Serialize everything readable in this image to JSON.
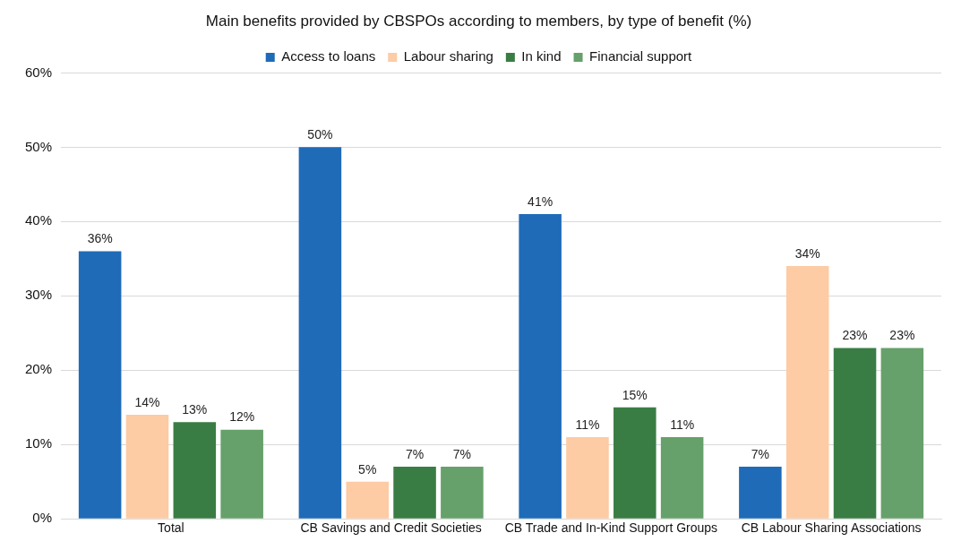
{
  "chart_data": {
    "type": "bar",
    "title": "Main benefits provided by CBSPOs according to members, by type of benefit (%)",
    "categories": [
      "Total",
      "CB Savings and Credit Societies",
      "CB Trade and In-Kind Support Groups",
      "CB Labour Sharing Associations"
    ],
    "series": [
      {
        "name": "Access to loans",
        "color": "#1f6bb8",
        "values": [
          36,
          50,
          41,
          7
        ],
        "value_labels": [
          "36%",
          "50%",
          "41%",
          "7%"
        ]
      },
      {
        "name": "Labour sharing",
        "color": "#fdcba4",
        "values": [
          14,
          5,
          11,
          34
        ],
        "value_labels": [
          "14%",
          "5%",
          "11%",
          "34%"
        ]
      },
      {
        "name": "In kind",
        "color": "#3a7d44",
        "values": [
          13,
          7,
          15,
          23
        ],
        "value_labels": [
          "13%",
          "7%",
          "15%",
          "23%"
        ]
      },
      {
        "name": "Financial support",
        "color": "#66a06a",
        "values": [
          12,
          7,
          11,
          23
        ],
        "value_labels": [
          "12%",
          "7%",
          "11%",
          "23%"
        ]
      }
    ],
    "ylim": [
      0,
      60
    ],
    "yticks": [
      {
        "value": 0,
        "label": "0%"
      },
      {
        "value": 10,
        "label": "10%"
      },
      {
        "value": 20,
        "label": "20%"
      },
      {
        "value": 30,
        "label": "30%"
      },
      {
        "value": 40,
        "label": "40%"
      },
      {
        "value": 50,
        "label": "50%"
      },
      {
        "value": 60,
        "label": "60%"
      }
    ],
    "grid": "y",
    "legend": "top"
  }
}
